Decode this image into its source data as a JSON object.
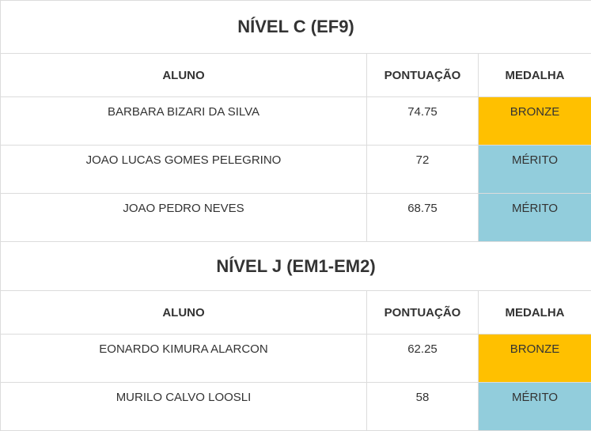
{
  "colors": {
    "bronze": "#ffc000",
    "merito": "#92cddc",
    "border": "#dcdcdc",
    "text": "#333333"
  },
  "sections": [
    {
      "title": "NÍVEL C (EF9)",
      "headers": {
        "aluno": "ALUNO",
        "pontuacao": "PONTUAÇÃO",
        "medalha": "MEDALHA"
      },
      "rows": [
        {
          "aluno": "BARBARA BIZARI DA SILVA",
          "pontuacao": "74.75",
          "medalha": "BRONZE"
        },
        {
          "aluno": "JOAO LUCAS GOMES PELEGRINO",
          "pontuacao": "72",
          "medalha": "MÉRITO"
        },
        {
          "aluno": "JOAO PEDRO NEVES",
          "pontuacao": "68.75",
          "medalha": "MÉRITO"
        }
      ]
    },
    {
      "title": "NÍVEL J (EM1-EM2)",
      "headers": {
        "aluno": "ALUNO",
        "pontuacao": "PONTUAÇÃO",
        "medalha": "MEDALHA"
      },
      "rows": [
        {
          "aluno": "EONARDO KIMURA ALARCON",
          "pontuacao": "62.25",
          "medalha": "BRONZE"
        },
        {
          "aluno": "MURILO CALVO LOOSLI",
          "pontuacao": "58",
          "medalha": "MÉRITO"
        }
      ]
    }
  ]
}
